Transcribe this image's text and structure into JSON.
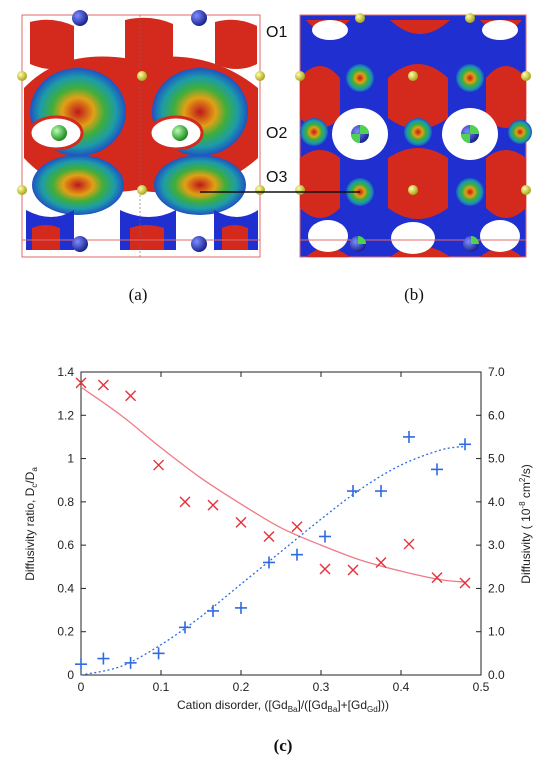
{
  "panels": {
    "a_label": "(a)",
    "b_label": "(b)",
    "c_label": "(c)",
    "site_labels": [
      "O1",
      "O2",
      "O3"
    ],
    "colors": {
      "isosurface_red": "#d42a1e",
      "isosurface_blue": "#1f2fd0",
      "isosurface_green": "#3fae3a",
      "ion_blue": "#2433b8",
      "ion_yellow": "#d9d92a",
      "ion_green": "#4fd24f"
    }
  },
  "chart_data": {
    "type": "scatter",
    "xlabel": "Cation disorder, ([GdBa]/([GdBa]+[GdGd]))",
    "xlabel_parts": {
      "prefix": "Cation disorder, ([Gd",
      "sub1": "Ba",
      "mid1": "]/([Gd",
      "sub2": "Ba",
      "mid2": "]+[Gd",
      "sub3": "Gd",
      "suffix": "]))"
    },
    "ylabel_left": "Diffusivity ratio, Dc/Da",
    "ylabel_left_parts": {
      "prefix": "Diffusivity ratio, D",
      "sub1": "c",
      "mid": "/D",
      "sub2": "a"
    },
    "ylabel_right": "Diffusivity ( 10-8 cm2/s)",
    "ylabel_right_parts": {
      "prefix": "Diffusivity ( 10",
      "sup1": "-8",
      "mid": " cm",
      "sup2": "2",
      "suffix": "/s)"
    },
    "xlim": [
      0,
      0.5
    ],
    "ylim_left": [
      0,
      1.4
    ],
    "ylim_right": [
      0,
      7.0
    ],
    "x_ticks": [
      "0",
      "0.1",
      "0.2",
      "0.3",
      "0.4",
      "0.5"
    ],
    "y_ticks_left": [
      "0",
      "0.2",
      "0.4",
      "0.6",
      "0.8",
      "1",
      "1.2",
      "1.4"
    ],
    "y_ticks_right": [
      "0.0",
      "1.0",
      "2.0",
      "3.0",
      "4.0",
      "5.0",
      "6.0",
      "7.0"
    ],
    "grid": false,
    "series": [
      {
        "marker": "x",
        "color": "#e8303a",
        "axis": "left",
        "x": [
          0.0,
          0.028,
          0.062,
          0.097,
          0.13,
          0.165,
          0.2,
          0.235,
          0.27,
          0.305,
          0.34,
          0.375,
          0.41,
          0.445,
          0.48
        ],
        "y": [
          1.35,
          1.34,
          1.29,
          0.97,
          0.8,
          0.785,
          0.705,
          0.64,
          0.685,
          0.49,
          0.485,
          0.52,
          0.605,
          0.45,
          0.425
        ]
      },
      {
        "marker": "+",
        "color": "#2f6ae0",
        "axis": "right",
        "x": [
          0.0,
          0.028,
          0.062,
          0.097,
          0.13,
          0.165,
          0.2,
          0.235,
          0.27,
          0.305,
          0.34,
          0.375,
          0.41,
          0.445,
          0.48
        ],
        "y": [
          0.25,
          0.38,
          0.28,
          0.5,
          1.1,
          1.48,
          1.55,
          2.6,
          2.78,
          3.2,
          4.25,
          4.25,
          5.5,
          4.75,
          5.33
        ]
      }
    ],
    "fit_lines": [
      {
        "style": "solid",
        "color": "#f07a86",
        "axis": "left",
        "x": [
          0.0,
          0.05,
          0.1,
          0.15,
          0.2,
          0.25,
          0.3,
          0.35,
          0.4,
          0.45,
          0.48
        ],
        "y": [
          1.33,
          1.2,
          1.05,
          0.91,
          0.79,
          0.68,
          0.6,
          0.53,
          0.48,
          0.44,
          0.43
        ]
      },
      {
        "style": "dotted",
        "color": "#2f6ae0",
        "axis": "right",
        "x": [
          0.0,
          0.05,
          0.1,
          0.15,
          0.2,
          0.25,
          0.3,
          0.35,
          0.4,
          0.45,
          0.48
        ],
        "y": [
          0.0,
          0.2,
          0.7,
          1.35,
          2.1,
          2.85,
          3.6,
          4.3,
          4.85,
          5.2,
          5.28
        ]
      }
    ]
  }
}
